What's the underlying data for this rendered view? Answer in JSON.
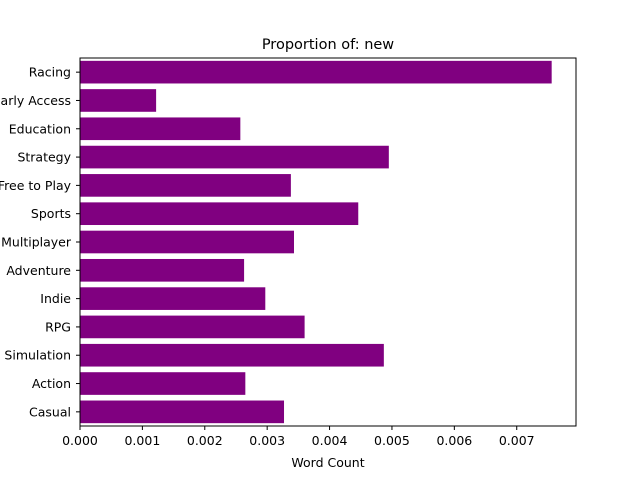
{
  "chart_data": {
    "type": "bar",
    "orientation": "horizontal",
    "title": "Proportion of: new",
    "xlabel": "Word Count",
    "ylabel": "",
    "bar_color": "#800080",
    "grid": false,
    "xlim": [
      0,
      0.00795
    ],
    "x_ticks": [
      0.0,
      0.001,
      0.002,
      0.003,
      0.004,
      0.005,
      0.006,
      0.007
    ],
    "x_tick_labels": [
      "0.000",
      "0.001",
      "0.002",
      "0.003",
      "0.004",
      "0.005",
      "0.006",
      "0.007"
    ],
    "categories": [
      "Racing",
      "Early Access",
      "Education",
      "Strategy",
      "Free to Play",
      "Sports",
      "Multiplayer",
      "Adventure",
      "Indie",
      "RPG",
      "Simulation",
      "Action",
      "Casual"
    ],
    "values": [
      0.00756,
      0.00122,
      0.00257,
      0.00495,
      0.00338,
      0.00446,
      0.00343,
      0.00263,
      0.00297,
      0.0036,
      0.00487,
      0.00265,
      0.00327
    ]
  }
}
